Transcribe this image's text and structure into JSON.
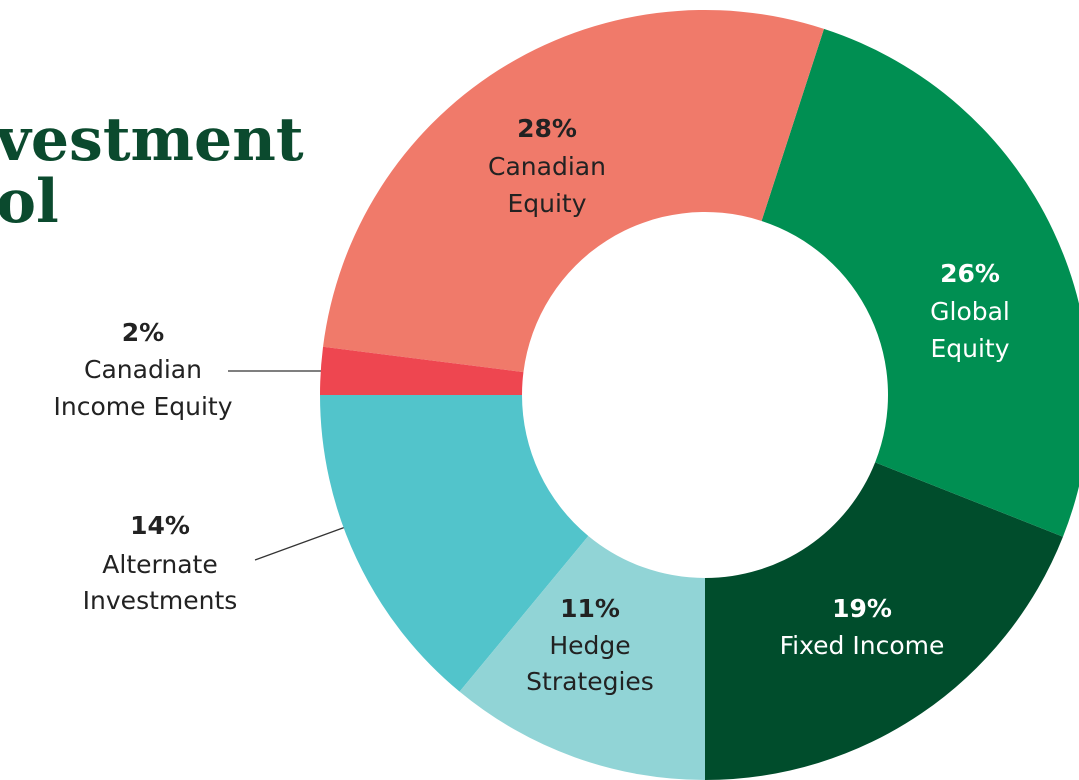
{
  "chart_data": {
    "type": "donut",
    "title_lines": [
      "vestment",
      "ol"
    ],
    "categories": [
      "Fixed Income",
      "Global Equity",
      "Canadian Equity",
      "Canadian Income Equity",
      "Alternate Investments",
      "Hedge Strategies"
    ],
    "values": [
      19,
      26,
      28,
      2,
      14,
      11
    ],
    "value_labels": [
      "19%",
      "26%",
      "28%",
      "2%",
      "14%",
      "11%"
    ],
    "colors": [
      "#004d2c",
      "#008f52",
      "#f07a6a",
      "#ee4650",
      "#52c4cb",
      "#91d4d6"
    ]
  }
}
